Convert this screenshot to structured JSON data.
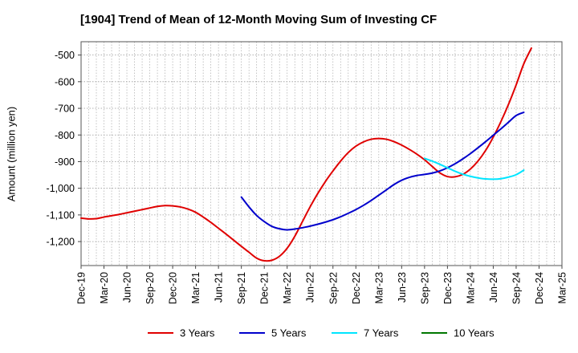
{
  "chart_data": {
    "type": "line",
    "title": "[1904]  Trend of Mean of 12-Month Moving Sum of Investing CF",
    "xlabel": "",
    "ylabel": "Amount (million yen)",
    "ylim": [
      -1290,
      -450
    ],
    "yticks": [
      -500,
      -600,
      -700,
      -800,
      -900,
      -1000,
      -1100,
      -1200
    ],
    "ytick_labels": [
      "-500",
      "-600",
      "-700",
      "-800",
      "-900",
      "-1,000",
      "-1,100",
      "-1,200"
    ],
    "xlim": [
      "2019-12",
      "2025-03"
    ],
    "xtick_labels": [
      "Dec-19",
      "Mar-20",
      "Jun-20",
      "Sep-20",
      "Dec-20",
      "Mar-21",
      "Jun-21",
      "Sep-21",
      "Dec-21",
      "Mar-22",
      "Jun-22",
      "Sep-22",
      "Dec-22",
      "Mar-23",
      "Jun-23",
      "Sep-23",
      "Dec-23",
      "Mar-24",
      "Jun-24",
      "Sep-24",
      "Dec-24",
      "Mar-25"
    ],
    "grid": true,
    "legend_position": "bottom",
    "series": [
      {
        "name": "3 Years",
        "color": "#e00000",
        "points": [
          [
            "2019-12",
            -1112
          ],
          [
            "2020-01",
            -1115
          ],
          [
            "2020-02",
            -1114
          ],
          [
            "2020-03",
            -1108
          ],
          [
            "2020-04",
            -1103
          ],
          [
            "2020-05",
            -1098
          ],
          [
            "2020-06",
            -1092
          ],
          [
            "2020-07",
            -1086
          ],
          [
            "2020-08",
            -1080
          ],
          [
            "2020-09",
            -1074
          ],
          [
            "2020-10",
            -1068
          ],
          [
            "2020-11",
            -1065
          ],
          [
            "2020-12",
            -1066
          ],
          [
            "2021-01",
            -1070
          ],
          [
            "2021-02",
            -1078
          ],
          [
            "2021-03",
            -1090
          ],
          [
            "2021-04",
            -1108
          ],
          [
            "2021-05",
            -1128
          ],
          [
            "2021-06",
            -1150
          ],
          [
            "2021-07",
            -1172
          ],
          [
            "2021-08",
            -1195
          ],
          [
            "2021-09",
            -1218
          ],
          [
            "2021-10",
            -1240
          ],
          [
            "2021-11",
            -1262
          ],
          [
            "2021-12",
            -1272
          ],
          [
            "2022-01",
            -1270
          ],
          [
            "2022-02",
            -1255
          ],
          [
            "2022-03",
            -1225
          ],
          [
            "2022-04",
            -1180
          ],
          [
            "2022-05",
            -1125
          ],
          [
            "2022-06",
            -1070
          ],
          [
            "2022-07",
            -1020
          ],
          [
            "2022-08",
            -975
          ],
          [
            "2022-09",
            -935
          ],
          [
            "2022-10",
            -898
          ],
          [
            "2022-11",
            -866
          ],
          [
            "2022-12",
            -842
          ],
          [
            "2023-01",
            -826
          ],
          [
            "2023-02",
            -816
          ],
          [
            "2023-03",
            -813
          ],
          [
            "2023-04",
            -816
          ],
          [
            "2023-05",
            -825
          ],
          [
            "2023-06",
            -838
          ],
          [
            "2023-07",
            -854
          ],
          [
            "2023-08",
            -872
          ],
          [
            "2023-09",
            -893
          ],
          [
            "2023-10",
            -918
          ],
          [
            "2023-11",
            -942
          ],
          [
            "2023-12",
            -956
          ],
          [
            "2024-01",
            -957
          ],
          [
            "2024-02",
            -948
          ],
          [
            "2024-03",
            -928
          ],
          [
            "2024-04",
            -898
          ],
          [
            "2024-05",
            -858
          ],
          [
            "2024-06",
            -808
          ],
          [
            "2024-07",
            -750
          ],
          [
            "2024-08",
            -685
          ],
          [
            "2024-09",
            -612
          ],
          [
            "2024-10",
            -533
          ],
          [
            "2024-11",
            -474
          ]
        ]
      },
      {
        "name": "5 Years",
        "color": "#0000cc",
        "points": [
          [
            "2021-09",
            -1033
          ],
          [
            "2021-10",
            -1070
          ],
          [
            "2021-11",
            -1102
          ],
          [
            "2021-12",
            -1125
          ],
          [
            "2022-01",
            -1143
          ],
          [
            "2022-02",
            -1152
          ],
          [
            "2022-03",
            -1156
          ],
          [
            "2022-04",
            -1153
          ],
          [
            "2022-05",
            -1148
          ],
          [
            "2022-06",
            -1142
          ],
          [
            "2022-07",
            -1135
          ],
          [
            "2022-08",
            -1127
          ],
          [
            "2022-09",
            -1118
          ],
          [
            "2022-10",
            -1107
          ],
          [
            "2022-11",
            -1094
          ],
          [
            "2022-12",
            -1080
          ],
          [
            "2023-01",
            -1064
          ],
          [
            "2023-02",
            -1046
          ],
          [
            "2023-03",
            -1026
          ],
          [
            "2023-04",
            -1006
          ],
          [
            "2023-05",
            -986
          ],
          [
            "2023-06",
            -970
          ],
          [
            "2023-07",
            -959
          ],
          [
            "2023-08",
            -952
          ],
          [
            "2023-09",
            -948
          ],
          [
            "2023-10",
            -943
          ],
          [
            "2023-11",
            -935
          ],
          [
            "2023-12",
            -923
          ],
          [
            "2024-01",
            -908
          ],
          [
            "2024-02",
            -890
          ],
          [
            "2024-03",
            -870
          ],
          [
            "2024-04",
            -848
          ],
          [
            "2024-05",
            -825
          ],
          [
            "2024-06",
            -801
          ],
          [
            "2024-07",
            -777
          ],
          [
            "2024-08",
            -752
          ],
          [
            "2024-09",
            -727
          ],
          [
            "2024-10",
            -715
          ]
        ]
      },
      {
        "name": "7 Years",
        "color": "#00e5ff",
        "points": [
          [
            "2023-09",
            -888
          ],
          [
            "2023-10",
            -898
          ],
          [
            "2023-11",
            -910
          ],
          [
            "2023-12",
            -923
          ],
          [
            "2024-01",
            -936
          ],
          [
            "2024-02",
            -947
          ],
          [
            "2024-03",
            -955
          ],
          [
            "2024-04",
            -961
          ],
          [
            "2024-05",
            -965
          ],
          [
            "2024-06",
            -966
          ],
          [
            "2024-07",
            -964
          ],
          [
            "2024-08",
            -958
          ],
          [
            "2024-09",
            -949
          ],
          [
            "2024-10",
            -932
          ]
        ]
      },
      {
        "name": "10 Years",
        "color": "#007700",
        "points": []
      }
    ]
  }
}
